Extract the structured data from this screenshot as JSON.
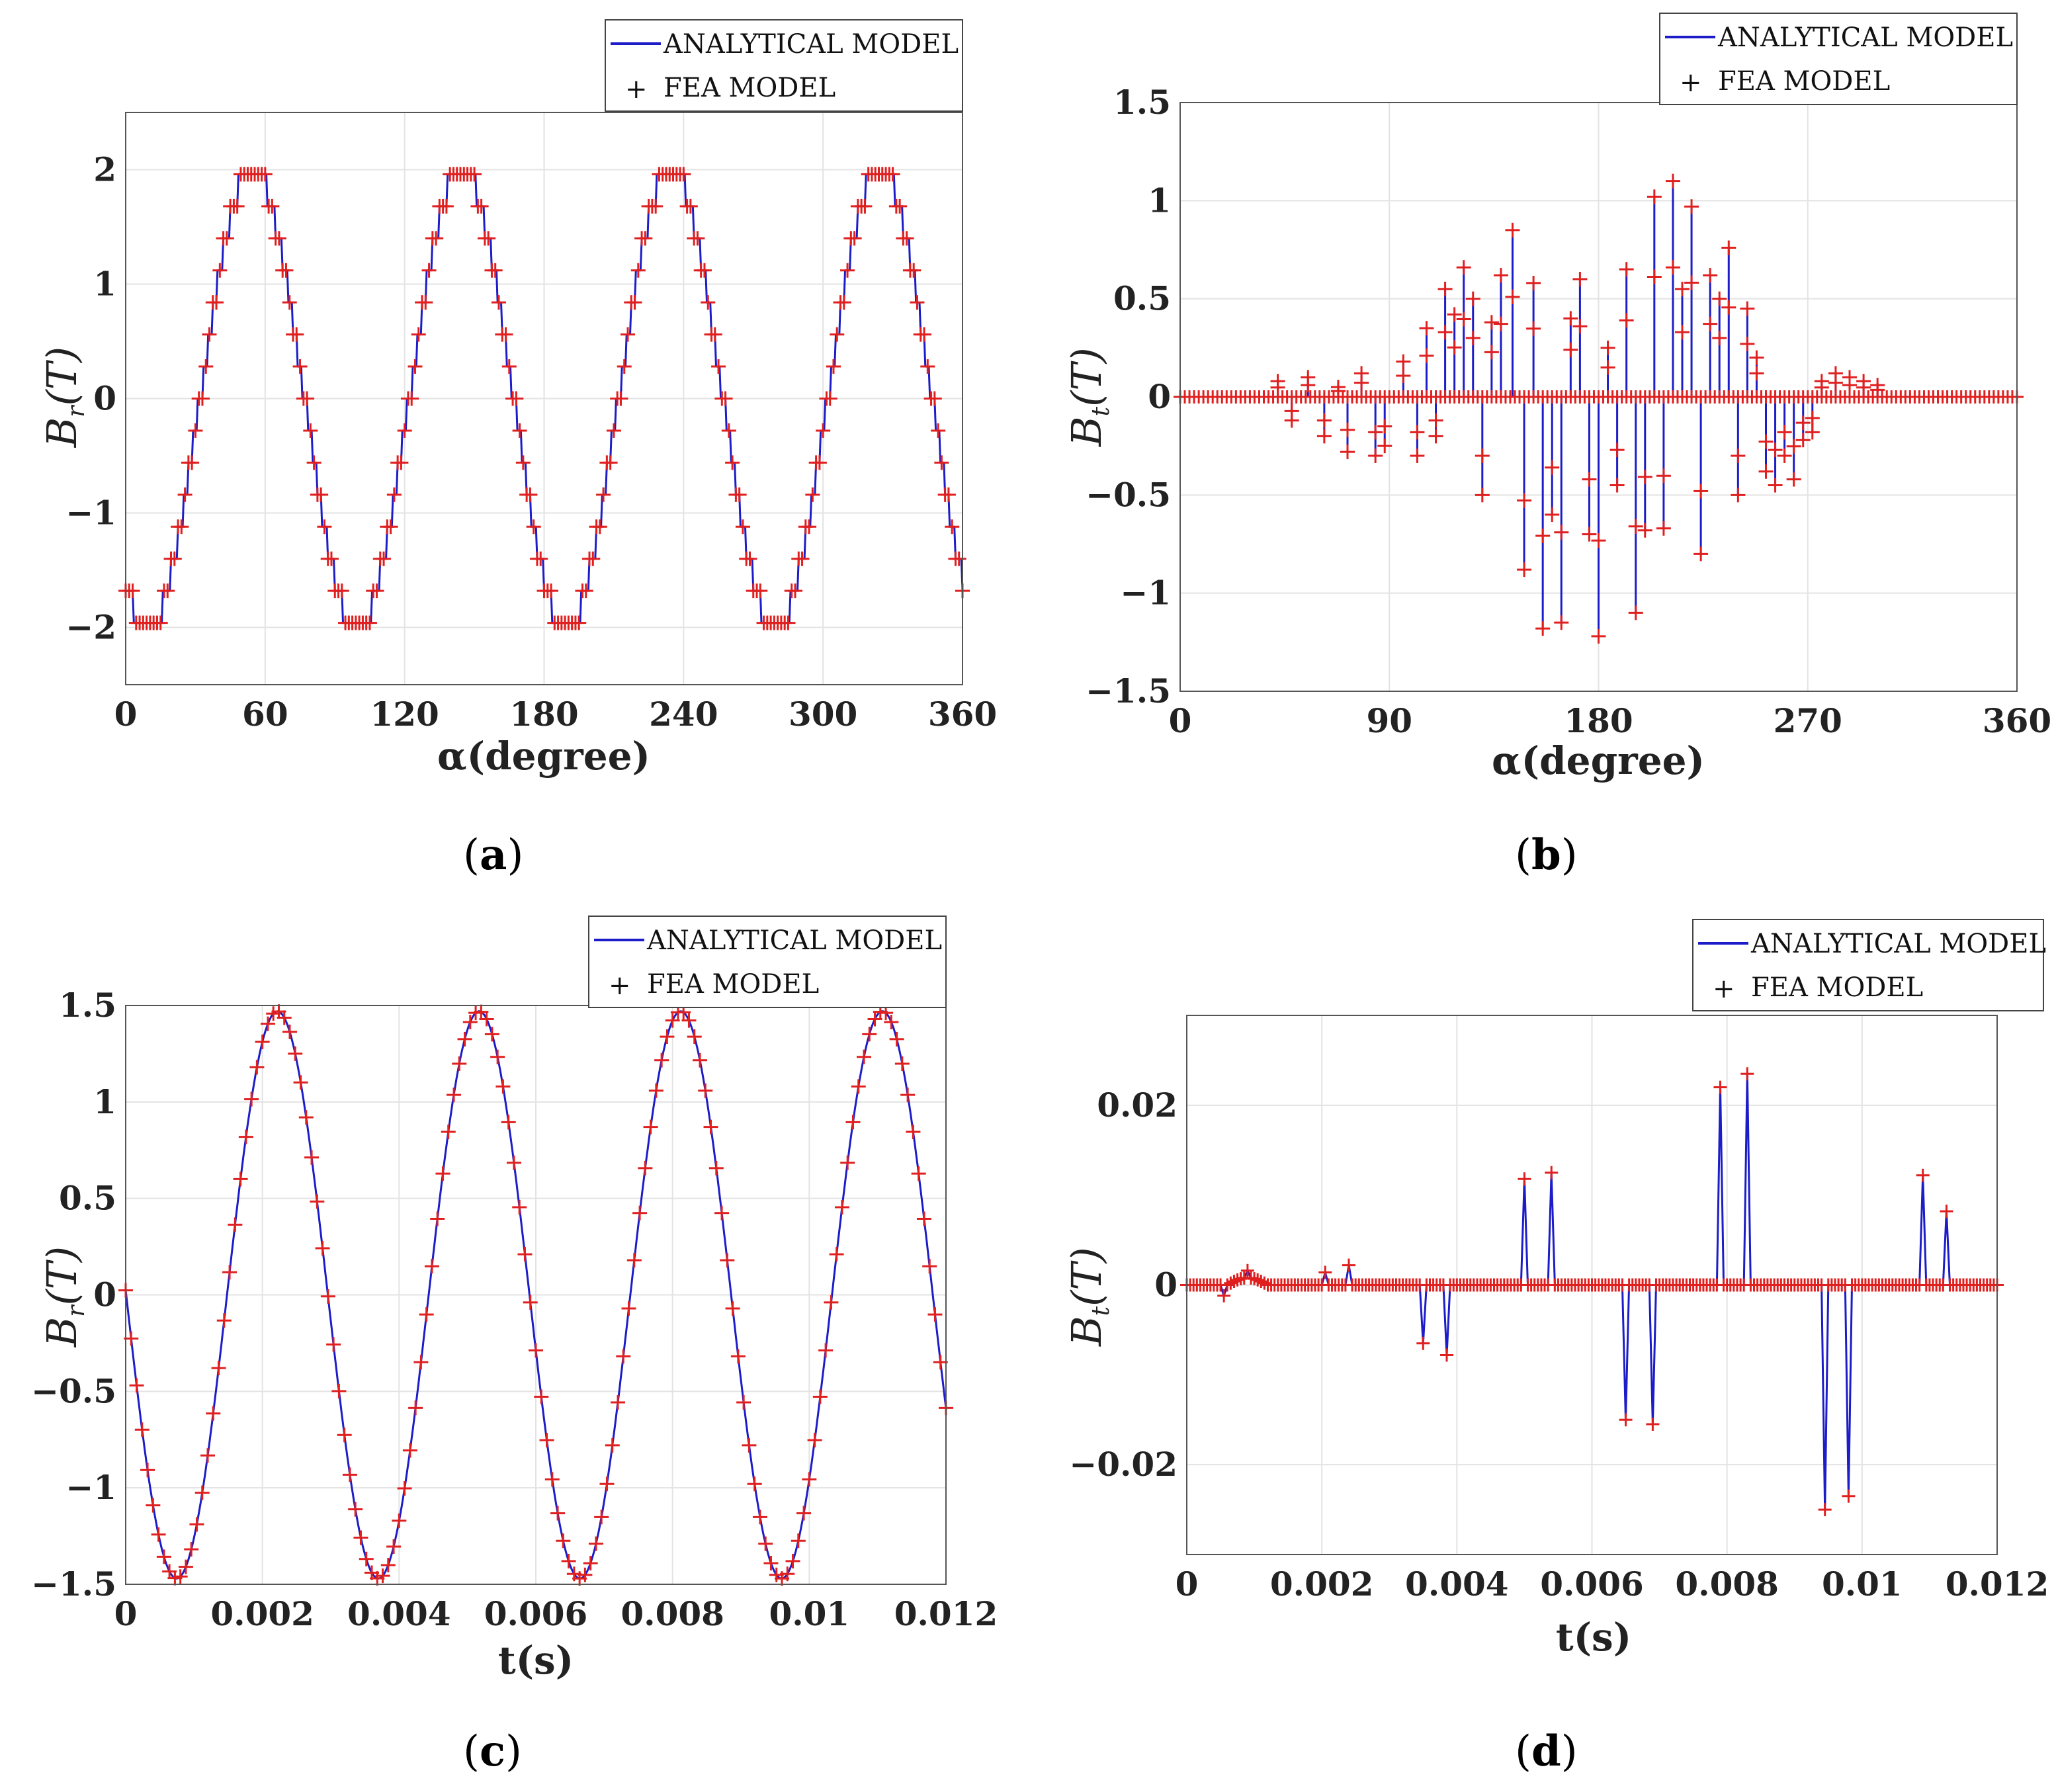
{
  "legend": {
    "analytical": "ANALYTICAL MODEL",
    "fea": "FEA MODEL"
  },
  "colors": {
    "analytical": "#1c1cc8",
    "fea": "#e01f1f",
    "grid": "#e3e3e3",
    "frame": "#555555"
  },
  "captions": {
    "a": "a",
    "b": "b",
    "c": "c",
    "d": "d"
  },
  "chart_data": [
    {
      "id": "a",
      "type": "line",
      "title": "",
      "xlabel": "α(degree)",
      "ylabel_main": "B",
      "ylabel_sub": "r",
      "ylabel_unit": "(T)",
      "xlim": [
        0,
        360
      ],
      "ylim": [
        -2.5,
        2.5
      ],
      "xticks": [
        0,
        60,
        120,
        180,
        240,
        300,
        360
      ],
      "xtick_labels": [
        "0",
        "60",
        "120",
        "180",
        "240",
        "300",
        "360"
      ],
      "yticks": [
        2,
        1,
        0,
        -1,
        -2
      ],
      "ytick_labels": [
        "2",
        "1",
        "0",
        "−1",
        "−2"
      ],
      "grid": true,
      "legend_position": "top-right",
      "series": [
        {
          "name": "ANALYTICAL MODEL",
          "style": "line",
          "periods": 4,
          "amplitude": 2,
          "steps_per_period": 30,
          "phase_deg": -32
        },
        {
          "name": "FEA MODEL",
          "style": "plus-markers",
          "note": "markers follow the analytical curve"
        }
      ]
    },
    {
      "id": "b",
      "type": "line",
      "title": "",
      "xlabel": "α(degree)",
      "ylabel_main": "B",
      "ylabel_sub": "t",
      "ylabel_unit": "(T)",
      "xlim": [
        0,
        360
      ],
      "ylim": [
        -1.5,
        1.5
      ],
      "xticks": [
        0,
        90,
        180,
        270,
        360
      ],
      "xtick_labels": [
        "0",
        "90",
        "180",
        "270",
        "360"
      ],
      "yticks": [
        1.5,
        1,
        0.5,
        0,
        -0.5,
        -1,
        -1.5
      ],
      "ytick_labels": [
        "1.5",
        "1",
        "0.5",
        "0",
        "−0.5",
        "−1",
        "−1.5"
      ],
      "grid": true,
      "legend_position": "top-right",
      "spikes": [
        [
          42,
          0.08
        ],
        [
          48,
          -0.12
        ],
        [
          55,
          0.1
        ],
        [
          62,
          -0.2
        ],
        [
          68,
          0.05
        ],
        [
          72,
          -0.28
        ],
        [
          78,
          0.12
        ],
        [
          84,
          -0.3
        ],
        [
          88,
          -0.25
        ],
        [
          96,
          0.18
        ],
        [
          102,
          -0.3
        ],
        [
          106,
          0.35
        ],
        [
          110,
          -0.2
        ],
        [
          114,
          0.55
        ],
        [
          118,
          0.42
        ],
        [
          122,
          0.66
        ],
        [
          126,
          0.5
        ],
        [
          130,
          -0.5
        ],
        [
          134,
          0.38
        ],
        [
          138,
          0.62
        ],
        [
          143,
          0.85
        ],
        [
          148,
          -0.88
        ],
        [
          152,
          0.58
        ],
        [
          156,
          -1.18
        ],
        [
          160,
          -0.6
        ],
        [
          164,
          -1.15
        ],
        [
          168,
          0.4
        ],
        [
          172,
          0.6
        ],
        [
          176,
          -0.7
        ],
        [
          180,
          -1.22
        ],
        [
          184,
          0.25
        ],
        [
          188,
          -0.45
        ],
        [
          192,
          0.65
        ],
        [
          196,
          -1.1
        ],
        [
          200,
          -0.68
        ],
        [
          204,
          1.02
        ],
        [
          208,
          -0.67
        ],
        [
          212,
          1.1
        ],
        [
          216,
          0.55
        ],
        [
          220,
          0.97
        ],
        [
          224,
          -0.8
        ],
        [
          228,
          0.62
        ],
        [
          232,
          0.5
        ],
        [
          236,
          0.76
        ],
        [
          240,
          -0.5
        ],
        [
          244,
          0.45
        ],
        [
          248,
          0.2
        ],
        [
          252,
          -0.38
        ],
        [
          256,
          -0.45
        ],
        [
          260,
          -0.3
        ],
        [
          264,
          -0.42
        ],
        [
          268,
          -0.22
        ],
        [
          272,
          -0.18
        ],
        [
          276,
          0.08
        ],
        [
          282,
          0.12
        ],
        [
          288,
          0.1
        ],
        [
          294,
          0.08
        ],
        [
          300,
          0.06
        ]
      ],
      "series": [
        {
          "name": "ANALYTICAL MODEL",
          "style": "line"
        },
        {
          "name": "FEA MODEL",
          "style": "plus-markers"
        }
      ]
    },
    {
      "id": "c",
      "type": "line",
      "title": "",
      "xlabel": "t(s)",
      "ylabel_main": "B",
      "ylabel_sub": "r",
      "ylabel_unit": "(T)",
      "xlim": [
        0,
        0.012
      ],
      "ylim": [
        -1.5,
        1.5
      ],
      "xticks": [
        0,
        0.002,
        0.004,
        0.006,
        0.008,
        0.01,
        0.012
      ],
      "xtick_labels": [
        "0",
        "0.002",
        "0.004",
        "0.006",
        "0.008",
        "0.01",
        "0.012"
      ],
      "yticks": [
        1.5,
        1,
        0.5,
        0,
        -0.5,
        -1,
        -1.5
      ],
      "ytick_labels": [
        "1.5",
        "1",
        "0.5",
        "0",
        "−0.5",
        "−1",
        "−1.5"
      ],
      "grid": true,
      "legend_position": "top-right",
      "series": [
        {
          "name": "ANALYTICAL MODEL",
          "style": "line",
          "amplitude": 1.47,
          "period_s": 0.00295,
          "first_peak_s": 0.00222
        },
        {
          "name": "FEA MODEL",
          "style": "plus-markers"
        }
      ]
    },
    {
      "id": "d",
      "type": "line",
      "title": "",
      "xlabel": "t(s)",
      "ylabel_main": "B",
      "ylabel_sub": "t",
      "ylabel_unit": "(T)",
      "xlim": [
        0,
        0.012
      ],
      "ylim": [
        -0.03,
        0.03
      ],
      "xticks": [
        0,
        0.002,
        0.004,
        0.006,
        0.008,
        0.01,
        0.012
      ],
      "xtick_labels": [
        "0",
        "0.002",
        "0.004",
        "0.006",
        "0.008",
        "0.01",
        "0.012"
      ],
      "yticks": [
        0.02,
        0,
        -0.02
      ],
      "ytick_labels": [
        "0.02",
        "0",
        "−0.02"
      ],
      "grid": true,
      "legend_position": "top-right",
      "spikes": [
        [
          0.00055,
          -0.0012
        ],
        [
          0.0009,
          0.0008
        ],
        [
          0.00205,
          0.0014
        ],
        [
          0.0024,
          0.0022
        ],
        [
          0.0035,
          -0.0065
        ],
        [
          0.00385,
          -0.0078
        ],
        [
          0.005,
          0.0118
        ],
        [
          0.0054,
          0.0125
        ],
        [
          0.0065,
          -0.015
        ],
        [
          0.0069,
          -0.0155
        ],
        [
          0.0079,
          0.022
        ],
        [
          0.0083,
          0.0235
        ],
        [
          0.00945,
          -0.025
        ],
        [
          0.0098,
          -0.0235
        ],
        [
          0.0109,
          0.0122
        ],
        [
          0.01125,
          0.0082
        ]
      ],
      "series": [
        {
          "name": "ANALYTICAL MODEL",
          "style": "line"
        },
        {
          "name": "FEA MODEL",
          "style": "plus-markers"
        }
      ]
    }
  ]
}
